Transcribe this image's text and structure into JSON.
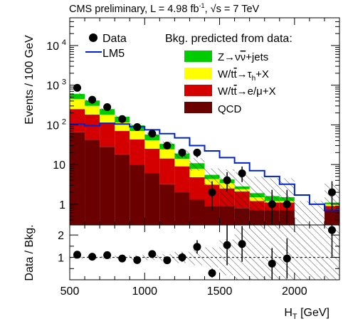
{
  "chart_data": {
    "type": "bar",
    "stacked": true,
    "title_parts": {
      "main": "CMS preliminary, L = 4.98 fb",
      "sup": "-1",
      "mid": ", ",
      "sqrt": "√s",
      "tail": " = 7 TeV"
    },
    "xlabel_main": "H",
    "xlabel_sub": "T",
    "xlabel_unit": " [GeV]",
    "ylabel_top": "Events / 100 GeV",
    "ylabel_bottom": "Data / Bkg.",
    "legend_header": "Bkg. predicted from data:",
    "legend_placement": "top-right",
    "xlim": [
      500,
      2300
    ],
    "ylim_top": [
      0.3,
      50000
    ],
    "ylim_top_scale": "log",
    "ylim_bottom": [
      0,
      2.45
    ],
    "xticks": [
      {
        "v": 500,
        "label": "500"
      },
      {
        "v": 1000,
        "label": "1000"
      },
      {
        "v": 1500,
        "label": "1500"
      },
      {
        "v": 2000,
        "label": "2000"
      }
    ],
    "yticks_top": [
      {
        "v": 1,
        "label": "1"
      },
      {
        "v": 10,
        "label": "10"
      },
      {
        "v": 100,
        "label": "10",
        "exp": "2"
      },
      {
        "v": 1000,
        "label": "10",
        "exp": "3"
      },
      {
        "v": 10000,
        "label": "10",
        "exp": "4"
      }
    ],
    "yticks_bottom": [
      {
        "v": 1,
        "label": "1"
      },
      {
        "v": 2,
        "label": "2"
      }
    ],
    "bin_edges": [
      500,
      600,
      700,
      800,
      900,
      1000,
      1100,
      1200,
      1300,
      1400,
      1500,
      1600,
      1700,
      1800,
      1900,
      2000,
      2100,
      2200,
      2300
    ],
    "series": [
      {
        "name": "QCD",
        "label": "QCD",
        "color": "#6b0000",
        "values": [
          65,
          42,
          28,
          18,
          10,
          6,
          3.2,
          2.0,
          1.3,
          0.9,
          0.9,
          0.8,
          0.7,
          0.7,
          0.7,
          0.3,
          0.3,
          0.7
        ]
      },
      {
        "name": "W/tt→e/μ+X",
        "label_parts": [
          "W/t",
          "t",
          "→e/μ+X"
        ],
        "color": "#d40000",
        "values": [
          185,
          140,
          82,
          52,
          33,
          19,
          11,
          7.0,
          3.5,
          2.2,
          1.6,
          1.3,
          0.5,
          0.4,
          0.4,
          0.0,
          0.0,
          0.2
        ]
      },
      {
        "name": "W/tt→τh+X",
        "label_parts": [
          "W/t",
          "t",
          "→τ",
          "h",
          "+X"
        ],
        "color": "#ffff00",
        "values": [
          200,
          120,
          70,
          45,
          27,
          16,
          10,
          5.0,
          3.0,
          1.2,
          0.9,
          0.3,
          0.3,
          0.1,
          0.1,
          0.0,
          0.0,
          0.1
        ]
      },
      {
        "name": "Z→νν+jets",
        "label_parts": [
          "Z→ν",
          "ν",
          "+jets"
        ],
        "color": "#00cc00",
        "values": [
          150,
          108,
          70,
          45,
          27,
          16,
          9,
          5.0,
          3.0,
          1.2,
          0.8,
          0.4,
          0.4,
          0.4,
          0.3,
          0.0,
          0.0,
          0.1
        ]
      }
    ],
    "signal": {
      "name": "LM5",
      "label": "LM5",
      "color": "#0022cc",
      "values": [
        105,
        95,
        110,
        105,
        90,
        75,
        60,
        47,
        30,
        22,
        15,
        11,
        7,
        5,
        3.2,
        1.7,
        1.0,
        0.7
      ]
    },
    "data": {
      "name": "Data",
      "label": "Data",
      "x": [
        550,
        650,
        750,
        850,
        950,
        1050,
        1150,
        1250,
        1350,
        1450,
        1550,
        1650,
        1750,
        1850,
        1950,
        2050,
        2150,
        2250
      ],
      "y": [
        860,
        430,
        280,
        140,
        88,
        60,
        30,
        20,
        20,
        2.0,
        4.0,
        6.0,
        null,
        1.0,
        1.0,
        null,
        null,
        2.0
      ],
      "err_up": [
        30,
        21,
        17,
        12,
        10,
        8,
        6,
        5,
        5,
        1.8,
        2.4,
        2.9,
        null,
        1.3,
        1.3,
        null,
        null,
        1.8
      ],
      "err_dn": [
        30,
        21,
        17,
        12,
        10,
        8,
        6,
        5,
        5,
        1.3,
        1.9,
        2.4,
        null,
        0.7,
        0.7,
        null,
        null,
        1.3
      ]
    },
    "ratio": {
      "x": [
        550,
        650,
        750,
        850,
        950,
        1050,
        1150,
        1250,
        1350,
        1450,
        1550,
        1650,
        1850,
        1950,
        2250
      ],
      "y": [
        1.12,
        1.03,
        1.1,
        0.95,
        0.88,
        1.15,
        0.87,
        1.0,
        1.47,
        0.3,
        1.55,
        1.6,
        0.72,
        0.95,
        2.22
      ],
      "err": [
        0.05,
        0.06,
        0.07,
        0.09,
        0.11,
        0.12,
        0.14,
        0.2,
        0.3,
        0.2,
        0.9,
        0.8,
        0.7,
        0.9,
        1.2
      ]
    }
  }
}
